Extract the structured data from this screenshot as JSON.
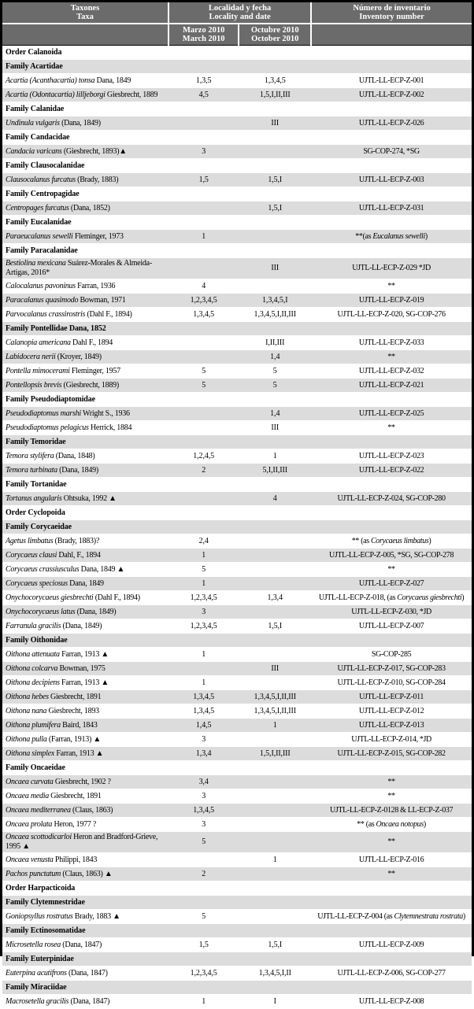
{
  "colors": {
    "header_bg": "#6b6b6b",
    "alt_row_bg": "#dcdcdc",
    "border": "#000000",
    "header_text": "#ffffff"
  },
  "header": {
    "taxa": {
      "line1": "Taxones",
      "line2": "Taxa"
    },
    "locality": {
      "line1": "Localidad y fecha",
      "line2": "Locality and date"
    },
    "inventory": {
      "line1": "Número de inventario",
      "line2": "Inventory number"
    },
    "march": {
      "line1": "Marzo 2010",
      "line2": "March 2010"
    },
    "october": {
      "line1": "Octubre 2010",
      "line2": "October 2010"
    }
  },
  "rows": [
    {
      "type": "order",
      "label": "Order Calanoida"
    },
    {
      "type": "family",
      "label": "Family Acartidae"
    },
    {
      "type": "species",
      "taxa": "_Acartia (Acanthacartia) tonsa_ Dana, 1849",
      "march": "1,3,5",
      "october": "1,3,4,5",
      "inventory": "UJTL-LL-ECP-Z-001"
    },
    {
      "type": "species",
      "taxa": "_Acartia (Odontacartia) lilljeborgi_ Giesbrecht, 1889",
      "march": "4,5",
      "october": "1,5,I,II,III",
      "inventory": "UJTL-LL-ECP-Z-002"
    },
    {
      "type": "family",
      "label": "Family Calanidae"
    },
    {
      "type": "species",
      "taxa": "_Undinula vulgaris_ (Dana, 1849)",
      "march": "",
      "october": "III",
      "inventory": "UJTL-LL-ECP-Z-026"
    },
    {
      "type": "family",
      "label": "Family Candacidae"
    },
    {
      "type": "species",
      "taxa": "_Candacia varicans_ (Giesbrecht, 1893)▲",
      "march": "3",
      "october": "",
      "inventory": "SG-COP-274, *SG"
    },
    {
      "type": "family",
      "label": "Family Clausocalanidae"
    },
    {
      "type": "species",
      "taxa": "_Clausocalanus furcatus_ (Brady, 1883)",
      "march": "1,5",
      "october": "1,5,I",
      "inventory": "UJTL-LL-ECP-Z-003"
    },
    {
      "type": "family",
      "label": "Family Centropagidae"
    },
    {
      "type": "species",
      "taxa": "_Centropages furcatus_ (Dana, 1852)",
      "march": "",
      "october": "1,5,I",
      "inventory": "UJTL-LL-ECP-Z-031"
    },
    {
      "type": "family",
      "label": "Family Eucalanidae"
    },
    {
      "type": "species",
      "taxa": "_Paraeucalanus sewelli_ Fleminger, 1973",
      "march": "1",
      "october": "",
      "inventory": "**(as _Eucalanus sewelli_)"
    },
    {
      "type": "family",
      "label": "Family Paracalanidae"
    },
    {
      "type": "species",
      "taxa": "_Bestiolina mexicana_ Suárez-Morales & Almeida-Artigas, 2016*",
      "march": "",
      "october": "III",
      "inventory": "UJTL-LL-ECP-Z-029 *JD"
    },
    {
      "type": "species",
      "taxa": "_Calocalanus pavoninus_ Farran, 1936",
      "march": "4",
      "october": "",
      "inventory": "**"
    },
    {
      "type": "species",
      "taxa": "_Paracalanus quasimodo_ Bowman, 1971",
      "march": "1,2,3,4,5",
      "october": "1,3,4,5,I",
      "inventory": "UJTL-LL-ECP-Z-019"
    },
    {
      "type": "species",
      "taxa": "_Parvocalanus crassirostris_ (Dahl F., 1894)",
      "march": "1,3,4,5",
      "october": "1,3,4,5,I,II,III",
      "inventory": "UJTL-LL-ECP-Z-020, SG-COP-276"
    },
    {
      "type": "family",
      "label": "Family Pontellidae Dana, 1852"
    },
    {
      "type": "species",
      "taxa": "_Calanopia americana_ Dahl F., 1894",
      "march": "",
      "october": "I,II,III",
      "inventory": "UJTL-LL-ECP-Z-033"
    },
    {
      "type": "species",
      "taxa": "_Labidocera nerii_ (Kroyer, 1849)",
      "march": "",
      "october": "1,4",
      "inventory": "**"
    },
    {
      "type": "species",
      "taxa": "_Pontella mimocerami_ Fleminger, 1957",
      "march": "5",
      "october": "5",
      "inventory": "UJTL-LL-ECP-Z-032"
    },
    {
      "type": "species",
      "taxa": "_Pontellopsis brevis_ (Giesbrecht, 1889)",
      "march": "5",
      "october": "5",
      "inventory": "UJTL-LL-ECP-Z-021"
    },
    {
      "type": "family",
      "label": "Family Pseudodiaptomidae"
    },
    {
      "type": "species",
      "taxa": "_Pseudodiaptomus marshi_ Wright S., 1936",
      "march": "",
      "october": "1,4",
      "inventory": "UJTL-LL-ECP-Z-025"
    },
    {
      "type": "species",
      "taxa": "_Pseudodiaptomus pelagicus_ Herrick, 1884",
      "march": "",
      "october": "III",
      "inventory": "**"
    },
    {
      "type": "family",
      "label": "Family Temoridae"
    },
    {
      "type": "species",
      "taxa": "_Temora stylifera_ (Dana, 1848)",
      "march": "1,2,4,5",
      "october": "1",
      "inventory": "UJTL-LL-ECP-Z-023"
    },
    {
      "type": "species",
      "taxa": "_Temora turbinata_ (Dana, 1849)",
      "march": "2",
      "october": "5,I,II,III",
      "inventory": "UJTL-LL-ECP-Z-022"
    },
    {
      "type": "family",
      "label": "Family Tortanidae"
    },
    {
      "type": "species",
      "taxa": "_Tortanus angularis_ Ohtsuka, 1992 ▲",
      "march": "",
      "october": "4",
      "inventory": "UJTL-LL-ECP-Z-024, SG-COP-280"
    },
    {
      "type": "order",
      "label": "Order Cyclopoida"
    },
    {
      "type": "family",
      "label": "Family Corycaeidae"
    },
    {
      "type": "species",
      "taxa": "_Agetus limbatus_ (Brady, 1883)?",
      "march": "2,4",
      "october": "",
      "inventory": "** (as _Corycaeus limbatus_)"
    },
    {
      "type": "species",
      "taxa": "_Corycaeus clausi_ Dahl, F., 1894",
      "march": "1",
      "october": "",
      "inventory": "UJTL-LL-ECP-Z-005, *SG, SG-COP-278"
    },
    {
      "type": "species",
      "taxa": "_Corycaeus crassiusculus_ Dana, 1849 ▲",
      "march": "5",
      "october": "",
      "inventory": "**"
    },
    {
      "type": "species",
      "taxa": "_Corycaeus speciosus_ Dana, 1849",
      "march": "1",
      "october": "",
      "inventory": "UJTL-LL-ECP-Z-027"
    },
    {
      "type": "species",
      "taxa": "_Onychocorycaeus giesbrechti_ (Dahl F., 1894)",
      "march": "1,2,3,4,5",
      "october": "1,3,4",
      "inventory": "UJTL-LL-ECP-Z-018, (as _Corycaeus giesbrechti_)"
    },
    {
      "type": "species",
      "taxa": "_Onychocorycaeus latus_ (Dana, 1849)",
      "march": "3",
      "october": "",
      "inventory": "UJTL-LL-ECP-Z-030, *JD"
    },
    {
      "type": "species",
      "taxa": "_Farranula gracilis_ (Dana, 1849)",
      "march": "1,2,3,4,5",
      "october": "1,5,I",
      "inventory": "UJTL-LL-ECP-Z-007"
    },
    {
      "type": "family",
      "label": "Family Oithonidae"
    },
    {
      "type": "species",
      "taxa": "_Oithona attenuata_ Farran, 1913 ▲",
      "march": "1",
      "october": "",
      "inventory": "SG-COP-285"
    },
    {
      "type": "species",
      "taxa": "_Oithona colcarva_ Bowman, 1975",
      "march": "",
      "october": "III",
      "inventory": "UJTL-LL-ECP-Z-017, SG-COP-283"
    },
    {
      "type": "species",
      "taxa": "_Oithona decipiens_ Farran, 1913 ▲",
      "march": "1",
      "october": "",
      "inventory": "UJTL-LL-ECP-Z-010, SG-COP-284"
    },
    {
      "type": "species",
      "taxa": "_Oithona hebes_ Giesbrecht, 1891",
      "march": "1,3,4,5",
      "october": "1,3,4,5,I,II,III",
      "inventory": "UJTL-LL-ECP-Z-011"
    },
    {
      "type": "species",
      "taxa": "_Oithona nana_ Giesbrecht, 1893",
      "march": "1,3,4,5",
      "october": "1,3,4,5,I,II,III",
      "inventory": "UJTL-LL-ECP-Z-012"
    },
    {
      "type": "species",
      "taxa": "_Oithona plumifera_ Baird, 1843",
      "march": "1,4,5",
      "october": "1",
      "inventory": "UJTL-LL-ECP-Z-013"
    },
    {
      "type": "species",
      "taxa": "_Oithona pulla_ (Farran, 1913) ▲",
      "march": "3",
      "october": "",
      "inventory": "UJTL-LL-ECP-Z-014, *JD"
    },
    {
      "type": "species",
      "taxa": "_Oithona simplex_ Farran, 1913 ▲",
      "march": "1,3,4",
      "october": "1,5,I,II,III",
      "inventory": "UJTL-LL-ECP-Z-015, SG-COP-282"
    },
    {
      "type": "family",
      "label": "Family Oncaeidae"
    },
    {
      "type": "species",
      "taxa": "_Oncaea curvata_ Giesbrecht, 1902 ?",
      "march": "3,4",
      "october": "",
      "inventory": "**"
    },
    {
      "type": "species",
      "taxa": "_Oncaea media_ Giesbrecht, 1891",
      "march": "3",
      "october": "",
      "inventory": "**"
    },
    {
      "type": "species",
      "taxa": "_Oncaea mediterranea_ (Claus, 1863)",
      "march": "1,3,4,5",
      "october": "",
      "inventory": "UJTL-LL-ECP-Z-0128 & LL-ECP-Z-037"
    },
    {
      "type": "species",
      "taxa": "_Oncaea prolata_ Heron, 1977 ?",
      "march": "3",
      "october": "",
      "inventory": "** (as _Oncaea notopus_)"
    },
    {
      "type": "species",
      "taxa": "_Oncaea scottodicarloi_ Heron and Bradford-Grieve, 1995 ▲",
      "march": "5",
      "october": "",
      "inventory": "**"
    },
    {
      "type": "species",
      "taxa": "_Oncaea venusta_ Philippi, 1843",
      "march": "",
      "october": "1",
      "inventory": "UJTL-LL-ECP-Z-016"
    },
    {
      "type": "species",
      "taxa": "_Pachos punctatum_ (Claus, 1863) ▲",
      "march": "2",
      "october": "",
      "inventory": "**"
    },
    {
      "type": "order",
      "label": "Order Harpacticoida"
    },
    {
      "type": "family",
      "label": "Family Clytemnestridae"
    },
    {
      "type": "species",
      "taxa": "_Goniopsyllus rostratus_ Brady, 1883 ▲",
      "march": "5",
      "october": "",
      "inventory": "UJTL-LL-ECP-Z-004 (as _Clytemnestrata rostrata_)"
    },
    {
      "type": "family",
      "label": "Family Ectinosomatidae"
    },
    {
      "type": "species",
      "taxa": "_Microsetella rosea_ (Dana, 1847)",
      "march": "1,5",
      "october": "1,5,I",
      "inventory": "UJTL-LL-ECP-Z-009"
    },
    {
      "type": "family",
      "label": "Family Euterpinidae"
    },
    {
      "type": "species",
      "taxa": "_Euterpina acutifrons_ (Dana, 1847)",
      "march": "1,2,3,4,5",
      "october": "1,3,4,5,I,II",
      "inventory": "UJTL-LL-ECP-Z-006, SG-COP-277"
    },
    {
      "type": "family",
      "label": "Family Miraciidae"
    },
    {
      "type": "species",
      "taxa": "_Macrosetella gracilis_ (Dana, 1847)",
      "march": "1",
      "october": "I",
      "inventory": "UJTL-LL-ECP-Z-008"
    }
  ]
}
